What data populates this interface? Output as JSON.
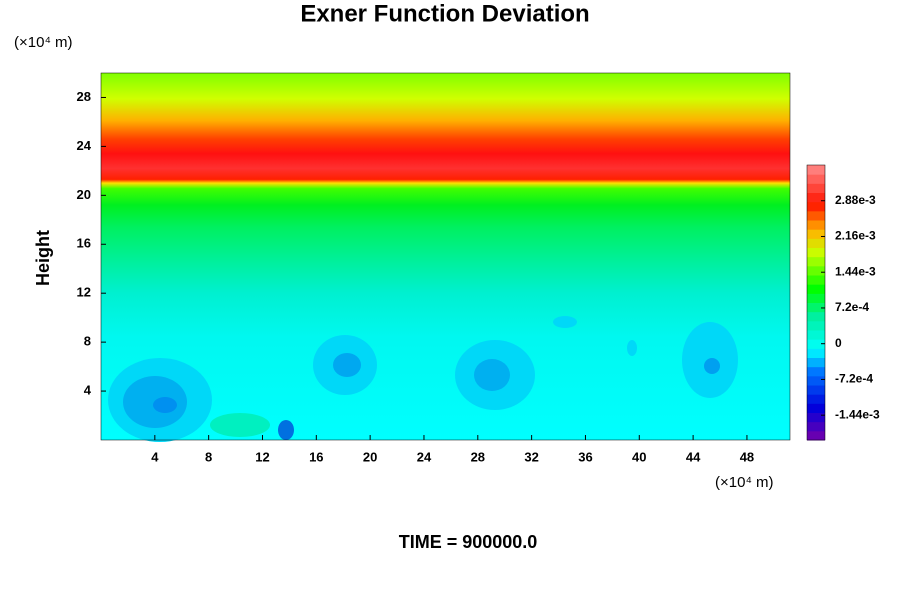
{
  "chart_data": {
    "type": "contour",
    "title": "Exner Function Deviation",
    "ylabel": "Height",
    "yunit": "(×10⁴ m)",
    "xunit": "(×10⁴ m)",
    "footer": "TIME = 900000.0",
    "xlim": [
      0,
      51.2
    ],
    "xticks": [
      4,
      8,
      12,
      16,
      20,
      24,
      28,
      32,
      36,
      40,
      44,
      48
    ],
    "ylim": [
      0,
      30
    ],
    "yticks": [
      4,
      8,
      12,
      16,
      20,
      24,
      28
    ],
    "clim": [
      -0.00194,
      0.0036
    ],
    "cticks": [
      {
        "value": -0.00144,
        "label": "-1.44e-3"
      },
      {
        "value": -0.00072,
        "label": "-7.2e-4"
      },
      0,
      {
        "value": 0.00072,
        "label": "7.2e-4"
      },
      {
        "value": 0.00144,
        "label": "1.44e-3"
      },
      {
        "value": 0.00216,
        "label": "2.16e-3"
      },
      {
        "value": 0.00288,
        "label": "2.88e-3"
      }
    ]
  }
}
